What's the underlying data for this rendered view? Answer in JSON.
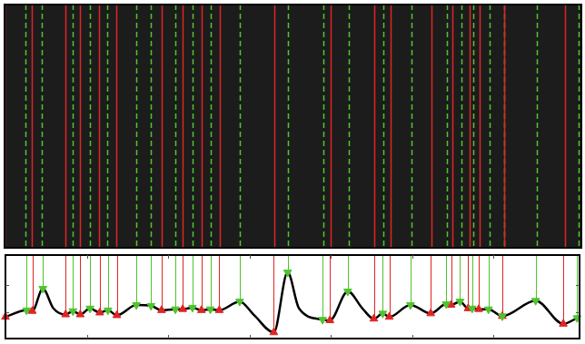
{
  "chart_data": {
    "type": "line",
    "color": "#000000",
    "x": [
      0,
      0.26,
      0.33,
      0.46,
      0.59,
      0.74,
      0.83,
      0.92,
      1.04,
      1.16,
      1.26,
      1.37,
      1.61,
      1.79,
      1.92,
      2.09,
      2.18,
      2.3,
      2.41,
      2.52,
      2.63,
      2.88,
      3.06,
      3.3,
      3.47,
      3.61,
      3.9,
      3.99,
      4.21,
      4.39,
      4.53,
      4.64,
      4.72,
      4.98,
      5.23,
      5.42,
      5.48,
      5.59,
      5.69,
      5.74,
      5.82,
      5.94,
      6.11,
      6.52,
      6.86,
      7.03
    ],
    "values": [
      0.81,
      1.06,
      1.03,
      1.87,
      1.13,
      0.9,
      1.03,
      0.9,
      1.13,
      0.97,
      1.06,
      0.87,
      1.26,
      1.23,
      1.06,
      1.1,
      1.1,
      1.16,
      1.06,
      1.1,
      1.06,
      1.39,
      0.87,
      0.23,
      2.48,
      1.13,
      0.71,
      0.68,
      1.77,
      1.13,
      0.74,
      0.94,
      0.81,
      1.26,
      0.94,
      1.29,
      1.26,
      1.39,
      1.13,
      1.13,
      1.1,
      1.1,
      0.84,
      1.42,
      0.55,
      0.77
    ],
    "xlim": [
      0,
      7.06
    ],
    "xticks": [
      1,
      2,
      3,
      4,
      5,
      6
    ],
    "ylim": [
      0,
      3.13
    ],
    "yticks": [
      1,
      2
    ],
    "grid": false,
    "tick_labels": false,
    "series": [
      {
        "type": "scatter",
        "color": "#4fc42f",
        "marker": "triangle-down",
        "line_style": "dashed",
        "x": [
          0.26,
          0.46,
          0.83,
          1.04,
          1.26,
          1.61,
          1.79,
          2.09,
          2.3,
          2.52,
          2.88,
          3.47,
          3.9,
          4.21,
          4.64,
          4.98,
          5.42,
          5.59,
          5.74,
          5.94,
          6.11,
          6.52,
          7.03
        ],
        "values": [
          1.06,
          1.87,
          1.03,
          1.13,
          1.06,
          1.26,
          1.23,
          1.1,
          1.16,
          1.1,
          1.39,
          2.48,
          0.71,
          1.77,
          0.94,
          1.26,
          1.29,
          1.39,
          1.13,
          1.1,
          0.84,
          1.42,
          0.77
        ]
      },
      {
        "type": "scatter",
        "color": "#e02424",
        "marker": "triangle",
        "line_style": "solid",
        "x": [
          0,
          0.33,
          0.74,
          0.92,
          1.16,
          1.37,
          1.92,
          2.18,
          2.41,
          2.63,
          3.3,
          3.99,
          4.53,
          4.72,
          5.23,
          5.48,
          5.69,
          5.82,
          6.11,
          6.86
        ],
        "values": [
          0.81,
          1.03,
          0.9,
          0.9,
          0.97,
          0.87,
          1.06,
          1.1,
          1.06,
          1.06,
          0.23,
          0.68,
          0.74,
          0.81,
          0.94,
          1.26,
          1.13,
          1.1,
          0.84,
          0.55
        ]
      }
    ]
  }
}
